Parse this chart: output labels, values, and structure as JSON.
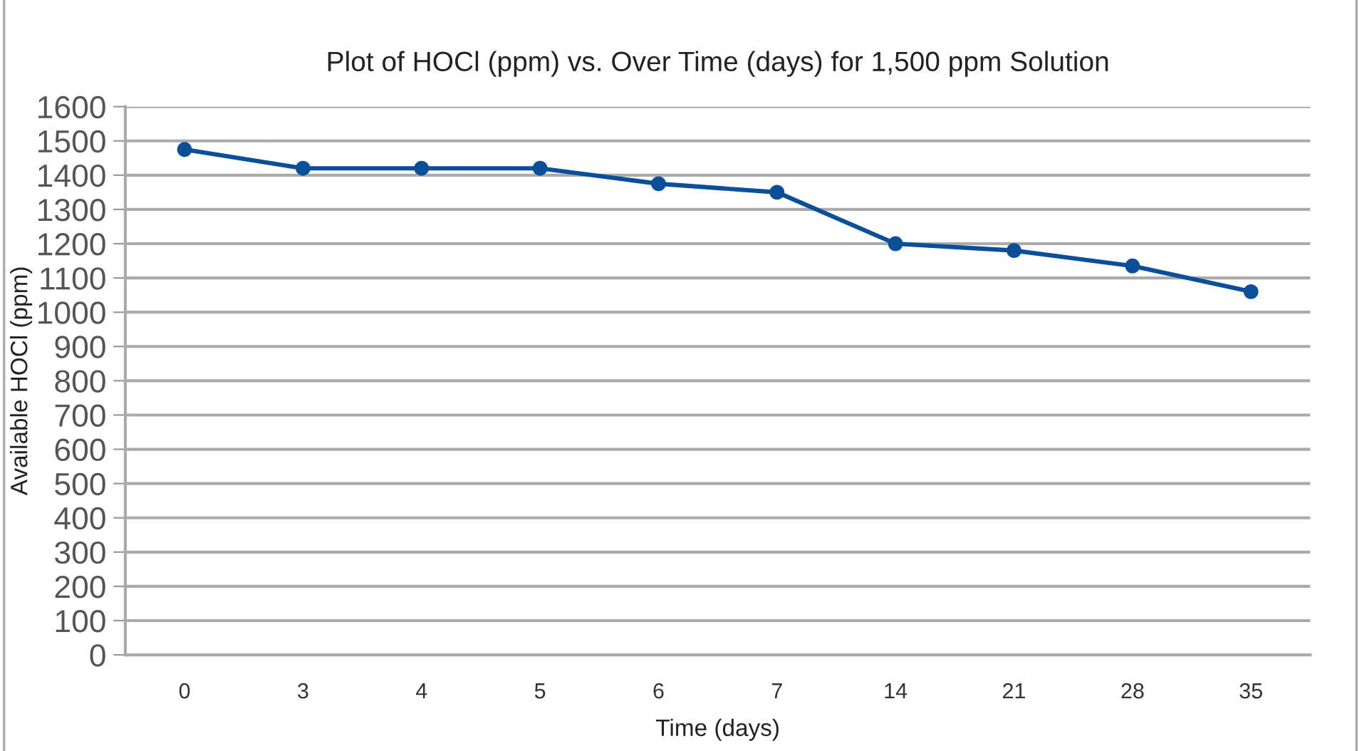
{
  "chart_data": {
    "type": "line",
    "title": "Plot of HOCl (ppm) vs. Over Time (days) for 1,500 ppm Solution",
    "xlabel": "Time (days)",
    "ylabel": "Available HOCl (ppm)",
    "categories": [
      "0",
      "3",
      "4",
      "5",
      "6",
      "7",
      "14",
      "21",
      "28",
      "35"
    ],
    "series": [
      {
        "color": "#0a4f98",
        "values": [
          1475,
          1420,
          1420,
          1420,
          1375,
          1350,
          1200,
          1180,
          1135,
          1060
        ]
      }
    ],
    "ylim": [
      0,
      1600
    ],
    "yticks": [
      0,
      100,
      200,
      300,
      400,
      500,
      600,
      700,
      800,
      900,
      1000,
      1100,
      1200,
      1300,
      1400,
      1500,
      1600
    ],
    "grid": "y",
    "legend": false,
    "marker": "circle",
    "line_style": "solid"
  }
}
